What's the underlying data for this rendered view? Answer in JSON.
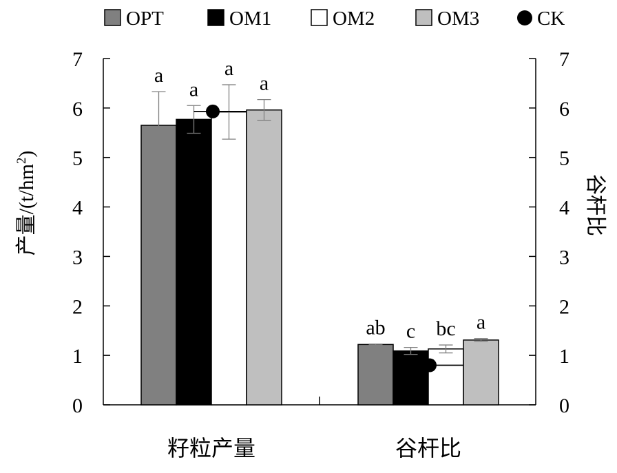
{
  "chart_data": {
    "type": "bar",
    "categories": [
      "籽粒产量",
      "谷杆比"
    ],
    "ylabel_left": "产量/(t/hm",
    "ylabel_left_sup": "2",
    "ylabel_left_close": ")",
    "ylabel_right": "谷杆比",
    "ylim": [
      0,
      7
    ],
    "yticks": [
      "0",
      "1",
      "2",
      "3",
      "4",
      "5",
      "6",
      "7"
    ],
    "legend_position": "top",
    "series": [
      {
        "name": "OPT",
        "color": "#808080",
        "values": [
          5.65,
          1.22
        ],
        "errors": [
          0.68,
          0.01
        ],
        "letters": [
          "a",
          "ab"
        ]
      },
      {
        "name": "OM1",
        "color": "#000000",
        "values": [
          5.77,
          1.09
        ],
        "errors": [
          0.28,
          0.07
        ],
        "letters": [
          "a",
          "c"
        ]
      },
      {
        "name": "OM2",
        "color": "#ffffff",
        "values": [
          5.92,
          1.13
        ],
        "errors": [
          0.55,
          0.08
        ],
        "letters": [
          "a",
          "bc"
        ]
      },
      {
        "name": "OM3",
        "color": "#bfbfbf",
        "values": [
          5.96,
          1.31
        ],
        "errors": [
          0.21,
          0.03
        ],
        "letters": [
          "a",
          "a"
        ]
      }
    ],
    "reference": {
      "name": "CK",
      "values": [
        5.93,
        0.8
      ]
    }
  }
}
